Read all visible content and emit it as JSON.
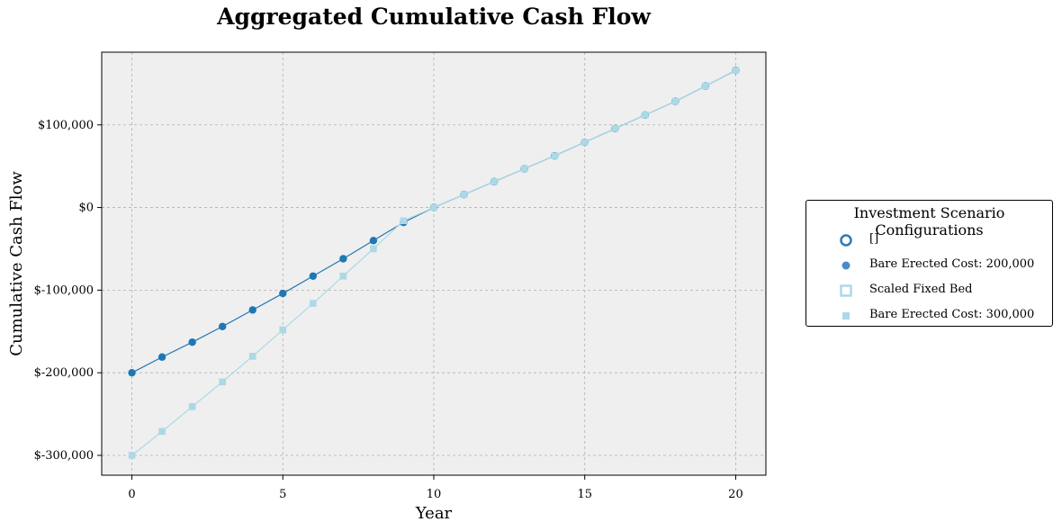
{
  "colors": {
    "series_a": "#1f77b4",
    "series_b": "#add8e6",
    "plot_bg": "#efefef",
    "grid": "#b0b0b0"
  },
  "chart_data": {
    "type": "line",
    "title": "Aggregated Cumulative Cash Flow",
    "xlabel": "Year",
    "ylabel": "Cumulative Cash Flow",
    "xlim": [
      -1,
      21
    ],
    "ylim": [
      -324000,
      188000
    ],
    "x_ticks": [
      0,
      5,
      10,
      15,
      20
    ],
    "y_ticks": [
      -300000,
      -200000,
      -100000,
      0,
      100000
    ],
    "y_tick_labels": [
      "$-300,000",
      "$-200,000",
      "$-100,000",
      "$0",
      "$100,000"
    ],
    "grid": true,
    "legend_placement": "right",
    "legend_title": "Investment Scenario Configurations",
    "legend_entries": [
      "[]",
      "Bare Erected Cost: 200,000",
      "Scaled Fixed Bed",
      "Bare Erected Cost: 300,000"
    ],
    "x": [
      0,
      1,
      2,
      3,
      4,
      5,
      6,
      7,
      8,
      9,
      10,
      11,
      12,
      13,
      14,
      15,
      16,
      17,
      18,
      19,
      20
    ],
    "series": [
      {
        "values": [
          -200000,
          -181000,
          -163000,
          -144000,
          -124000,
          -104000,
          -83000,
          -62000,
          -40000,
          -18000,
          0,
          15700,
          31300,
          46900,
          62600,
          79000,
          95500,
          112000,
          128500,
          147000,
          166000
        ],
        "marker": "circle",
        "color": "#1f77b4"
      },
      {
        "values": [
          -300000,
          -271000,
          -241000,
          -211000,
          -180000,
          -148000,
          -116000,
          -83000,
          -50000,
          -16000,
          0,
          15700,
          31300,
          46900,
          62600,
          79000,
          95500,
          112000,
          128500,
          147000,
          166000
        ],
        "marker": "square",
        "color": "#add8e6"
      }
    ]
  }
}
